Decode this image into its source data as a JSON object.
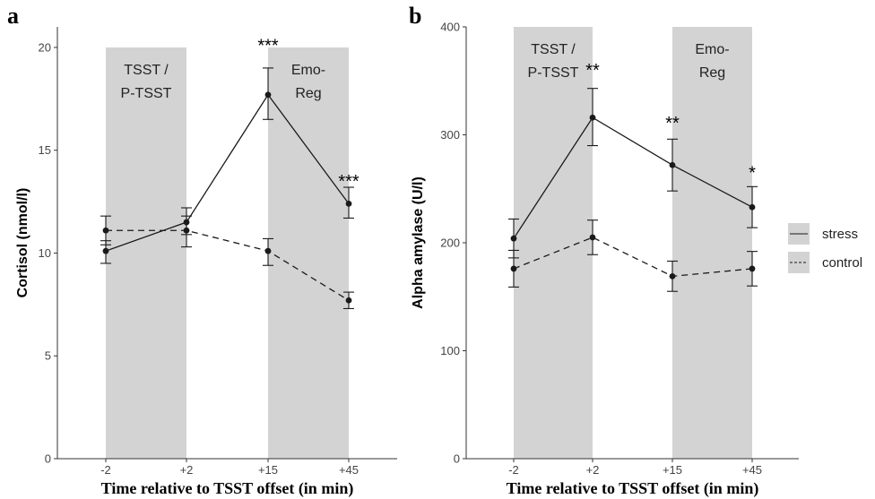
{
  "chart_data": [
    {
      "panel": "a",
      "type": "line",
      "xlabel": "Time relative to TSST offset (in min)",
      "ylabel": "Cortisol (nmol/l)",
      "categories": [
        "-2",
        "+2",
        "+15",
        "+45"
      ],
      "ylim": [
        0,
        21
      ],
      "yticks": [
        0,
        5,
        10,
        15,
        20
      ],
      "grid": false,
      "shaded_regions": [
        {
          "from": "-2",
          "to": "+2",
          "label_lines": [
            "TSST /",
            "P-TSST"
          ]
        },
        {
          "from": "+15",
          "to": "+45",
          "label_lines": [
            "Emo-",
            "Reg"
          ]
        }
      ],
      "series": [
        {
          "name": "stress",
          "line_style": "solid",
          "values": [
            10.1,
            11.5,
            17.7,
            12.4
          ],
          "err_low": [
            9.5,
            10.9,
            16.5,
            11.7
          ],
          "err_high": [
            10.6,
            12.2,
            19.0,
            13.2
          ]
        },
        {
          "name": "control",
          "line_style": "dashed",
          "values": [
            11.1,
            11.1,
            10.1,
            7.7
          ],
          "err_low": [
            10.4,
            10.3,
            9.4,
            7.3
          ],
          "err_high": [
            11.8,
            11.8,
            10.7,
            8.1
          ]
        }
      ],
      "significance": [
        {
          "x": "+15",
          "label": "***",
          "y": 20.1
        },
        {
          "x": "+45",
          "label": "***",
          "y": 13.5
        }
      ]
    },
    {
      "panel": "b",
      "type": "line",
      "xlabel": "Time relative to TSST offset (in min)",
      "ylabel": "Alpha amylase (U/l)",
      "categories": [
        "-2",
        "+2",
        "+15",
        "+45"
      ],
      "ylim": [
        0,
        400
      ],
      "yticks": [
        0,
        100,
        200,
        300,
        400
      ],
      "grid": false,
      "shaded_regions": [
        {
          "from": "-2",
          "to": "+2",
          "label_lines": [
            "TSST /",
            "P-TSST"
          ]
        },
        {
          "from": "+15",
          "to": "+45",
          "label_lines": [
            "Emo-",
            "Reg"
          ]
        }
      ],
      "series": [
        {
          "name": "stress",
          "line_style": "solid",
          "values": [
            204,
            316,
            272,
            233
          ],
          "err_low": [
            186,
            290,
            248,
            214
          ],
          "err_high": [
            222,
            343,
            296,
            252
          ]
        },
        {
          "name": "control",
          "line_style": "dashed",
          "values": [
            176,
            205,
            169,
            176
          ],
          "err_low": [
            159,
            189,
            155,
            160
          ],
          "err_high": [
            193,
            221,
            183,
            192
          ]
        }
      ],
      "significance": [
        {
          "x": "+2",
          "label": "**",
          "y": 360
        },
        {
          "x": "+15",
          "label": "**",
          "y": 311
        },
        {
          "x": "+45",
          "label": "*",
          "y": 265
        }
      ]
    }
  ],
  "legend": {
    "position": "right",
    "items": [
      {
        "label": "stress",
        "line_style": "solid"
      },
      {
        "label": "control",
        "line_style": "dashed"
      }
    ]
  },
  "colors": {
    "shade": "#d3d3d3",
    "line": "#1a1a1a",
    "axis": "#333333"
  }
}
